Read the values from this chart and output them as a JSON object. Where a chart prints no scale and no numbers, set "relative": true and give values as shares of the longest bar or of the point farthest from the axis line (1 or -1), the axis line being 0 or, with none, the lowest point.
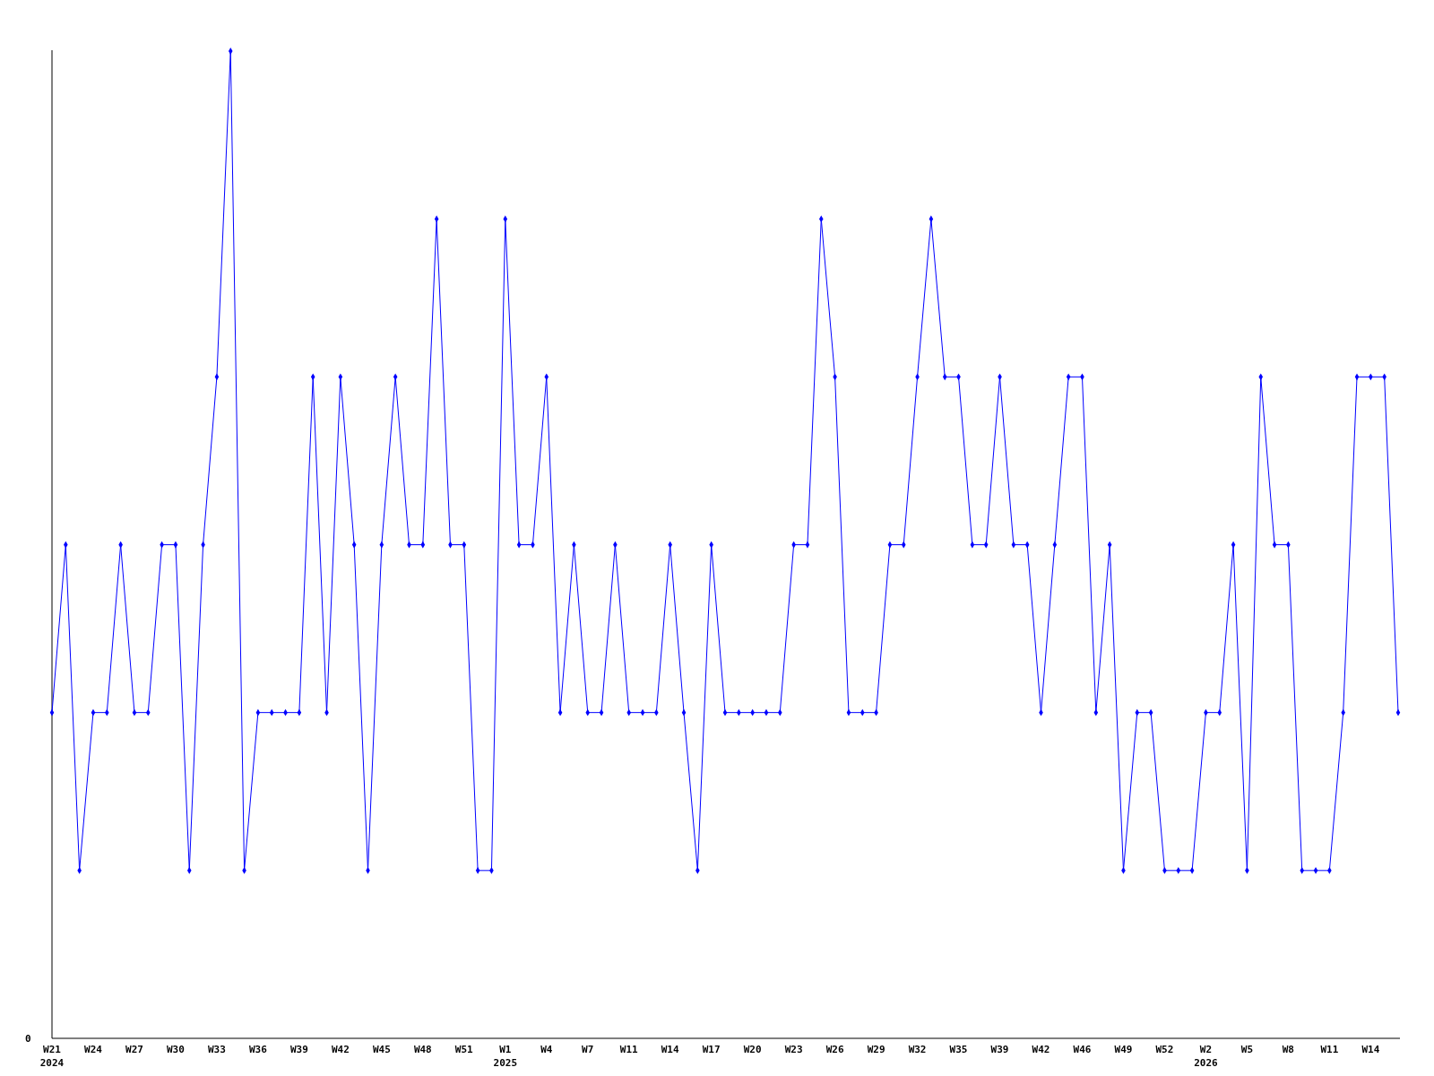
{
  "chart_data": {
    "type": "line",
    "relative": true,
    "marker": "diamond",
    "annotations": [
      "0"
    ],
    "categories": [
      "W21\n2024",
      null,
      null,
      "W24",
      null,
      null,
      "W27",
      null,
      null,
      "W30",
      null,
      null,
      "W33",
      null,
      null,
      "W36",
      null,
      null,
      "W39",
      null,
      null,
      "W42",
      null,
      null,
      "W45",
      null,
      null,
      "W48",
      null,
      null,
      "W51",
      null,
      null,
      "W1\n2025",
      null,
      null,
      "W4",
      null,
      null,
      "W7",
      null,
      null,
      "W11",
      null,
      null,
      "W14",
      null,
      null,
      "W17",
      null,
      null,
      "W20",
      null,
      null,
      "W23",
      null,
      null,
      "W26",
      null,
      null,
      "W29",
      null,
      null,
      "W32",
      null,
      null,
      "W35",
      null,
      null,
      "W39",
      null,
      null,
      "W42",
      null,
      null,
      "W46",
      null,
      null,
      "W49",
      null,
      null,
      "W52",
      null,
      null,
      "W2\n2026",
      null,
      null,
      "W5",
      null,
      null,
      "W8",
      null,
      null,
      "W11",
      null,
      null,
      "W14",
      null,
      null
    ],
    "series": [
      {
        "color": "#0000ff",
        "values": [
          0.33,
          0.5,
          0.17,
          0.33,
          0.33,
          0.5,
          0.33,
          0.33,
          0.5,
          0.5,
          0.17,
          0.5,
          0.67,
          1,
          0.17,
          0.33,
          0.33,
          0.33,
          0.33,
          0.67,
          0.33,
          0.67,
          0.5,
          0.17,
          0.5,
          0.67,
          0.5,
          0.5,
          0.83,
          0.5,
          0.5,
          0.17,
          0.17,
          0.83,
          0.5,
          0.5,
          0.67,
          0.33,
          0.5,
          0.33,
          0.33,
          0.5,
          0.33,
          0.33,
          0.33,
          0.5,
          0.33,
          0.17,
          0.5,
          0.33,
          0.33,
          0.33,
          0.33,
          0.33,
          0.5,
          0.5,
          0.83,
          0.67,
          0.33,
          0.33,
          0.33,
          0.5,
          0.5,
          0.67,
          0.83,
          0.67,
          0.67,
          0.5,
          0.5,
          0.67,
          0.5,
          0.5,
          0.33,
          0.5,
          0.67,
          0.67,
          0.33,
          0.5,
          0.17,
          0.33,
          0.33,
          0.17,
          0.17,
          0.17,
          0.33,
          0.33,
          0.5,
          0.17,
          0.67,
          0.5,
          0.5,
          0.17,
          0.17,
          0.17,
          0.33,
          0.67,
          0.67,
          0.67,
          0.33
        ]
      }
    ]
  }
}
